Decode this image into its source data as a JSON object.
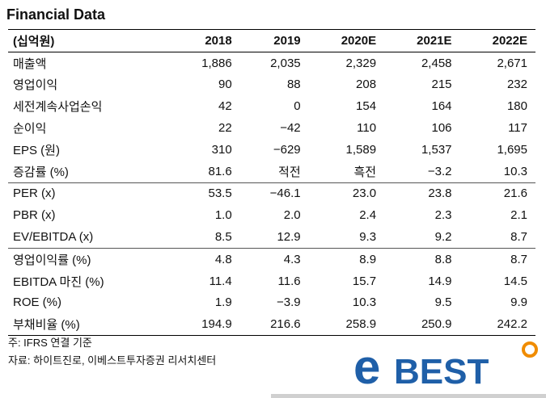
{
  "title": "Financial Data",
  "header": {
    "label": "(십억원)",
    "years": [
      "2018",
      "2019",
      "2020E",
      "2021E",
      "2022E"
    ]
  },
  "rows": [
    {
      "label": "매출액",
      "values": [
        "1,886",
        "2,035",
        "2,329",
        "2,458",
        "2,671"
      ]
    },
    {
      "label": "영업이익",
      "values": [
        "90",
        "88",
        "208",
        "215",
        "232"
      ]
    },
    {
      "label": "세전계속사업손익",
      "values": [
        "42",
        "0",
        "154",
        "164",
        "180"
      ]
    },
    {
      "label": "순이익",
      "values": [
        "22",
        "−42",
        "110",
        "106",
        "117"
      ]
    },
    {
      "label": "EPS (원)",
      "values": [
        "310",
        "−629",
        "1,589",
        "1,537",
        "1,695"
      ]
    },
    {
      "label": "증감률 (%)",
      "values": [
        "81.6",
        "적전",
        "흑전",
        "−3.2",
        "10.3"
      ]
    },
    {
      "label": "PER (x)",
      "values": [
        "53.5",
        "−46.1",
        "23.0",
        "23.8",
        "21.6"
      ]
    },
    {
      "label": "PBR (x)",
      "values": [
        "1.0",
        "2.0",
        "2.4",
        "2.3",
        "2.1"
      ]
    },
    {
      "label": "EV/EBITDA (x)",
      "values": [
        "8.5",
        "12.9",
        "9.3",
        "9.2",
        "8.7"
      ]
    },
    {
      "label": "영업이익률 (%)",
      "values": [
        "4.8",
        "4.3",
        "8.9",
        "8.8",
        "8.7"
      ]
    },
    {
      "label": "EBITDA 마진 (%)",
      "values": [
        "11.4",
        "11.6",
        "15.7",
        "14.9",
        "14.5"
      ]
    },
    {
      "label": "ROE (%)",
      "values": [
        "1.9",
        "−3.9",
        "10.3",
        "9.5",
        "9.9"
      ]
    },
    {
      "label": "부채비율 (%)",
      "values": [
        "194.9",
        "216.6",
        "258.9",
        "250.9",
        "242.2"
      ]
    }
  ],
  "notes": {
    "note1": "주: IFRS 연결 기준",
    "note2": "자료: 하이트진로, 이베스트투자증권 리서치센터"
  },
  "logo": {
    "text_e": "e",
    "text_best": "BEST",
    "color_blue": "#1f5fa8",
    "color_orange": "#f08c00"
  }
}
